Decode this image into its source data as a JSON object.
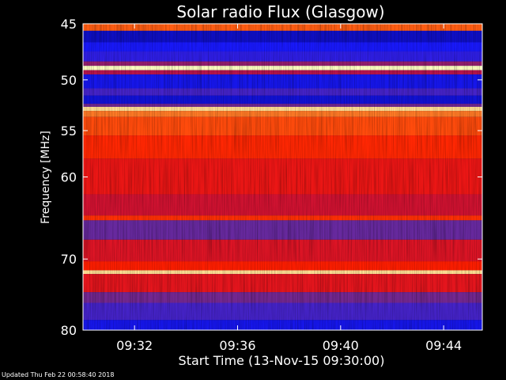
{
  "chart_data": {
    "type": "heatmap",
    "title": "Solar radio Flux (Glasgow)",
    "xlabel": "Start Time (13-Nov-15 09:30:00)",
    "ylabel": "Frequency [MHz]",
    "x_unit": "minutes after 09:30:00",
    "xlim": [
      0,
      15.5
    ],
    "ylim": [
      45,
      80
    ],
    "y_inverted": true,
    "y_scale": "log",
    "x_ticks": [
      {
        "value": 2,
        "label": "09:32"
      },
      {
        "value": 6,
        "label": "09:36"
      },
      {
        "value": 10,
        "label": "09:40"
      },
      {
        "value": 14,
        "label": "09:44"
      }
    ],
    "y_ticks": [
      {
        "value": 45,
        "label": "45"
      },
      {
        "value": 50,
        "label": "50"
      },
      {
        "value": 55,
        "label": "55"
      },
      {
        "value": 60,
        "label": "60"
      },
      {
        "value": 70,
        "label": "70"
      },
      {
        "value": 80,
        "label": "80"
      }
    ],
    "colormap": [
      "#00007a",
      "#1a1aff",
      "#6a2a9a",
      "#c8103a",
      "#ff1a00",
      "#ff5a10",
      "#ffa040",
      "#ffffc0"
    ],
    "frequency_bands": [
      {
        "from": 45,
        "to": 45.6,
        "level": 0.72
      },
      {
        "from": 45.6,
        "to": 46.6,
        "level": 0.08
      },
      {
        "from": 46.6,
        "to": 47.4,
        "level": 0.14
      },
      {
        "from": 47.4,
        "to": 48.3,
        "level": 0.18
      },
      {
        "from": 48.3,
        "to": 48.7,
        "level": 0.35
      },
      {
        "from": 48.7,
        "to": 49.1,
        "level": 1.0
      },
      {
        "from": 49.1,
        "to": 49.5,
        "level": 0.4
      },
      {
        "from": 49.5,
        "to": 50.8,
        "level": 0.12
      },
      {
        "from": 50.8,
        "to": 51.5,
        "level": 0.22
      },
      {
        "from": 51.5,
        "to": 52.3,
        "level": 0.1
      },
      {
        "from": 52.3,
        "to": 52.6,
        "level": 0.3
      },
      {
        "from": 52.6,
        "to": 53.0,
        "level": 0.95
      },
      {
        "from": 53.0,
        "to": 53.6,
        "level": 0.78
      },
      {
        "from": 53.6,
        "to": 55.5,
        "level": 0.68
      },
      {
        "from": 55.5,
        "to": 58.0,
        "level": 0.6
      },
      {
        "from": 58.0,
        "to": 62.0,
        "level": 0.52
      },
      {
        "from": 62.0,
        "to": 64.5,
        "level": 0.45
      },
      {
        "from": 64.5,
        "to": 65.1,
        "level": 0.62
      },
      {
        "from": 65.1,
        "to": 67.5,
        "level": 0.28
      },
      {
        "from": 67.5,
        "to": 70.3,
        "level": 0.48
      },
      {
        "from": 70.3,
        "to": 71.5,
        "level": 0.58
      },
      {
        "from": 71.5,
        "to": 72.0,
        "level": 0.95
      },
      {
        "from": 72.0,
        "to": 74.5,
        "level": 0.5
      },
      {
        "from": 74.5,
        "to": 76.0,
        "level": 0.3
      },
      {
        "from": 76.0,
        "to": 78.5,
        "level": 0.22
      },
      {
        "from": 78.5,
        "to": 80,
        "level": 0.12
      }
    ]
  },
  "footer": {
    "updated": "Updated Thu Feb 22 00:58:40 2018"
  }
}
